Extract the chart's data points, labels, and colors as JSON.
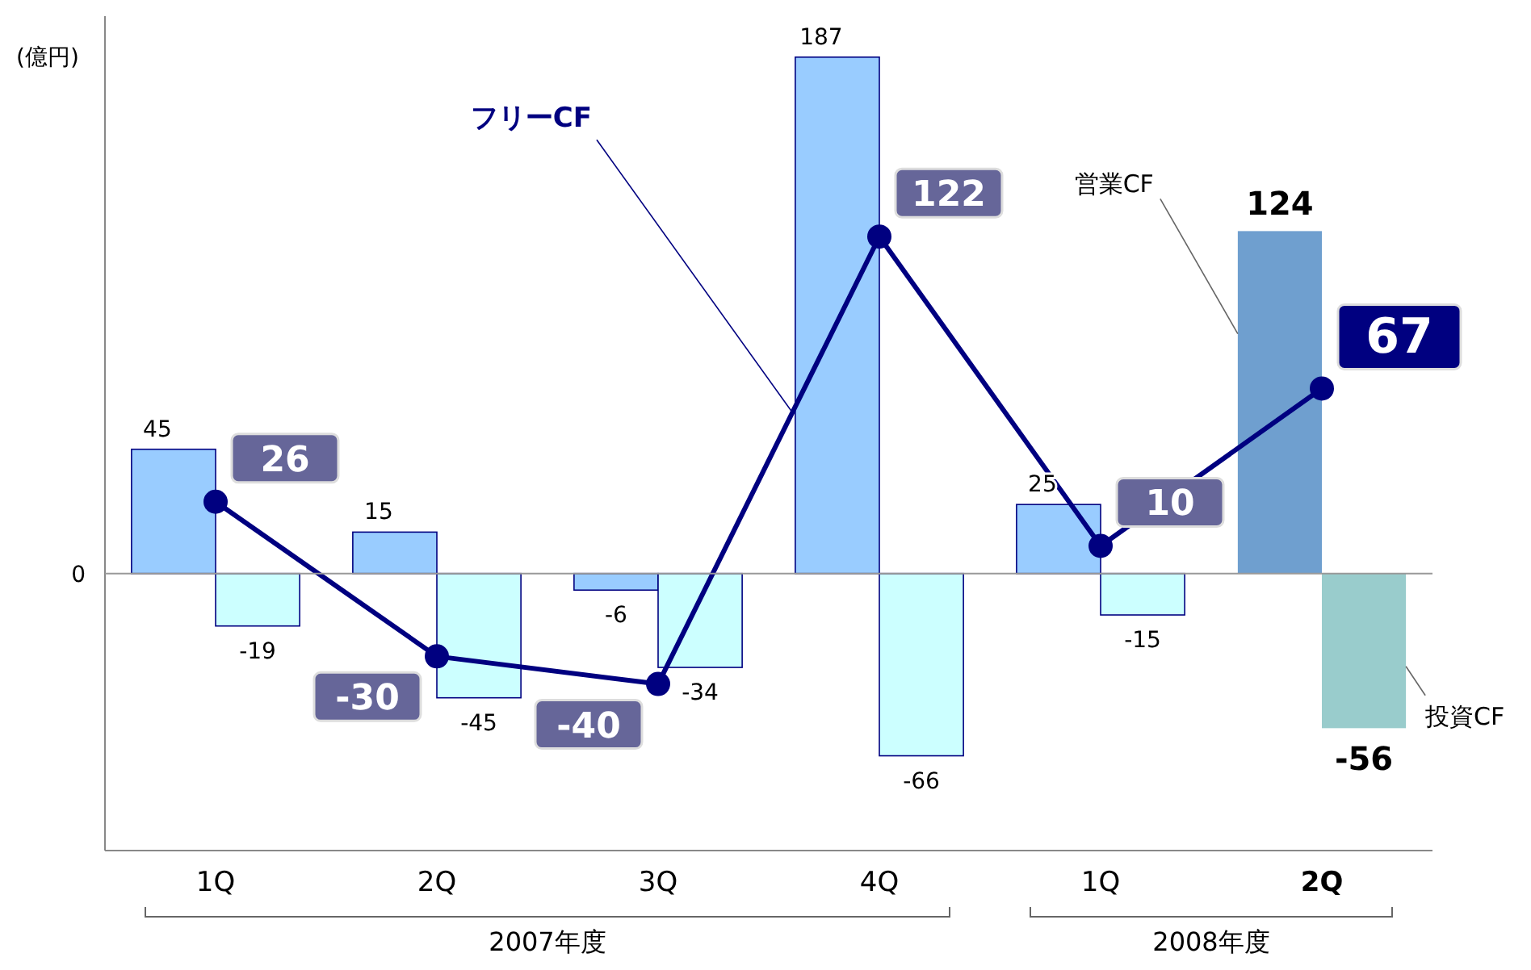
{
  "chart_data": {
    "type": "bar",
    "ylabel": "(億円)",
    "categories": [
      "1Q",
      "2Q",
      "3Q",
      "4Q",
      "1Q",
      "2Q"
    ],
    "series": [
      {
        "name": "営業CF",
        "colors": [
          "#99ccff",
          "#99ccff",
          "#99ccff",
          "#99ccff",
          "#99ccff",
          "#6f9fcf"
        ],
        "values": [
          45,
          15,
          -6,
          187,
          25,
          124
        ]
      },
      {
        "name": "投資CF",
        "colors": [
          "#ccffff",
          "#ccffff",
          "#ccffff",
          "#ccffff",
          "#ccffff",
          "#99cccc"
        ],
        "values": [
          -19,
          -45,
          -34,
          -66,
          -15,
          -56
        ]
      },
      {
        "name": "フリーCF",
        "type": "line",
        "color": "#000080",
        "marker": "circle",
        "values": [
          26,
          -30,
          -40,
          122,
          10,
          67
        ]
      }
    ],
    "data_labels": true,
    "annotations": [
      "0",
      "2007年度",
      "2008年度"
    ]
  }
}
